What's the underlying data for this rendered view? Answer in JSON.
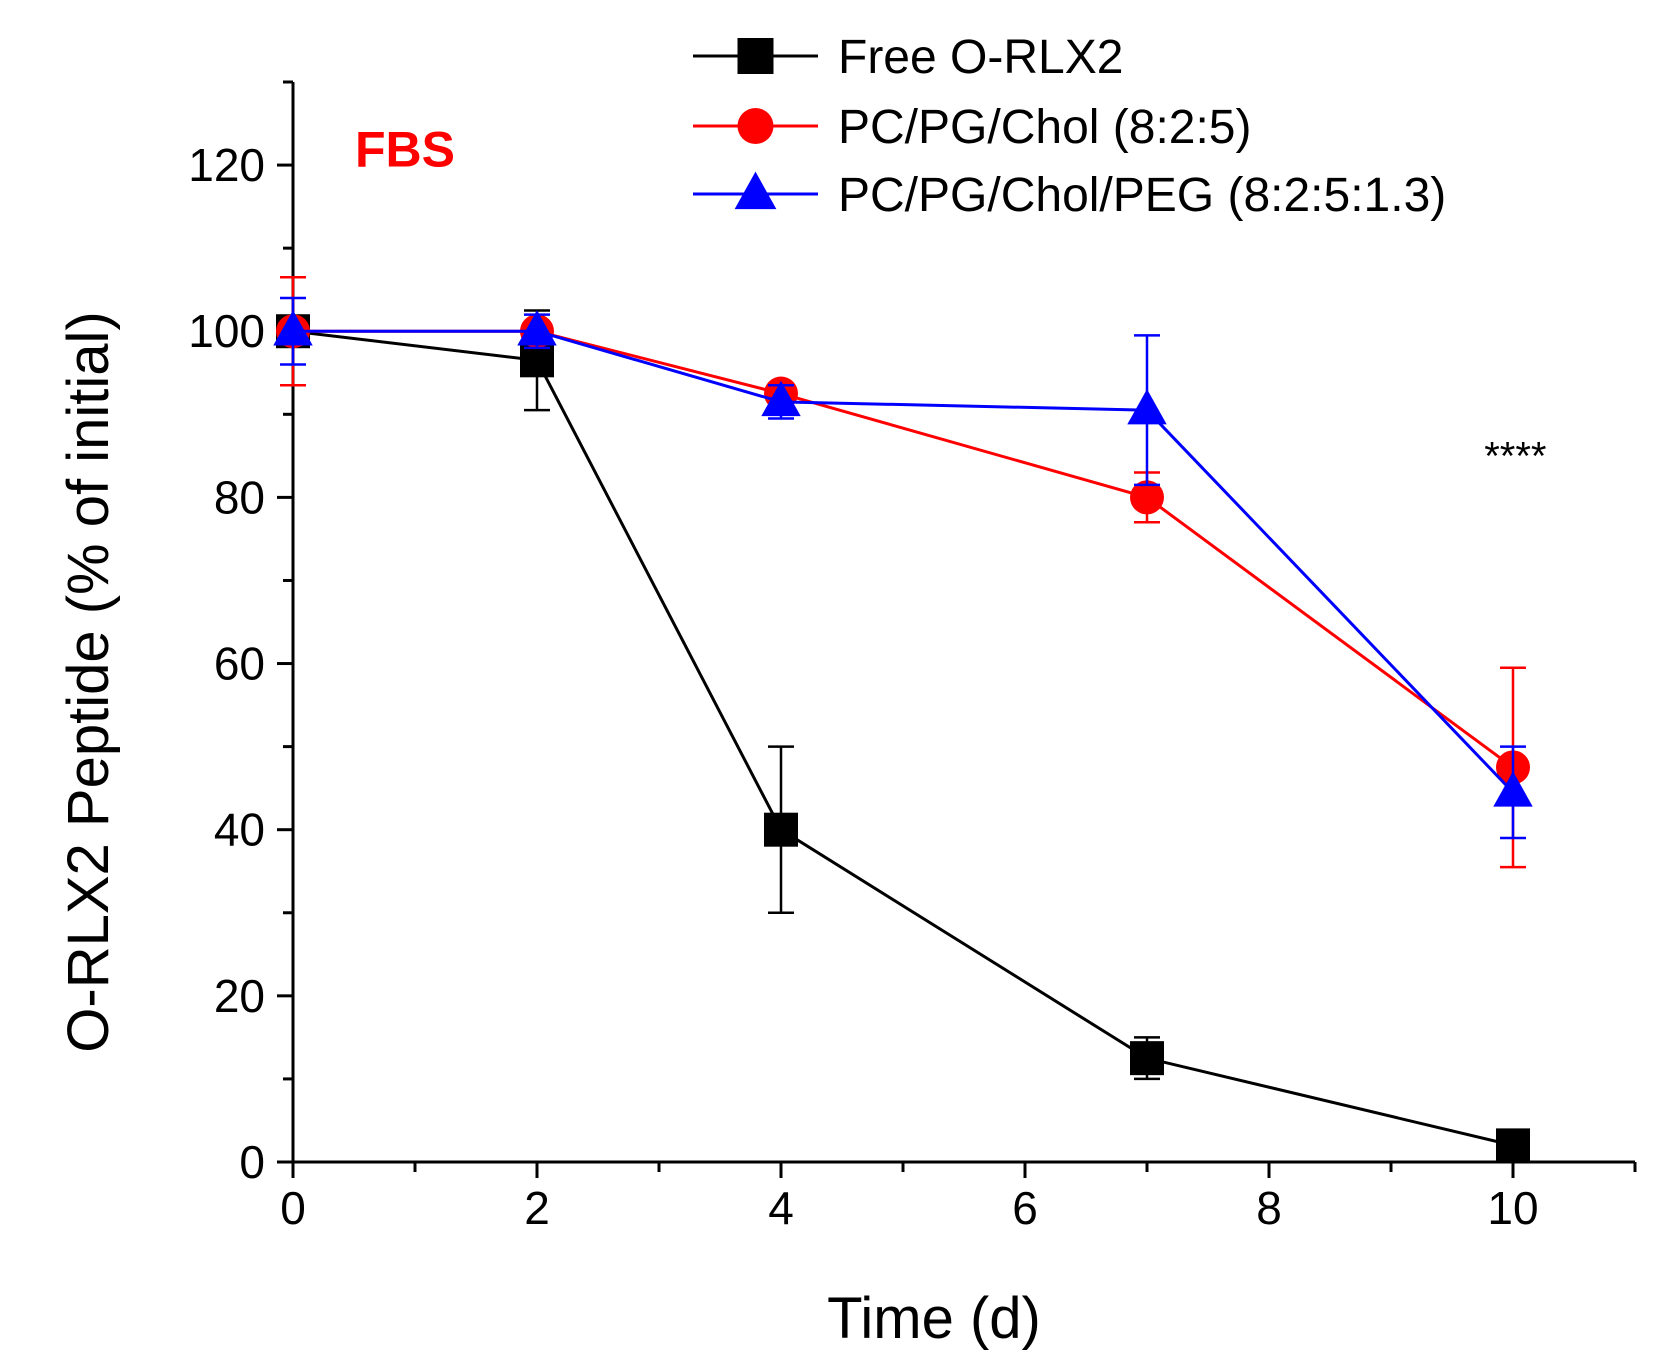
{
  "chart_data": {
    "type": "line",
    "title": "",
    "xlabel": "Time (d)",
    "ylabel": "O-RLX2 Peptide (% of initial)",
    "xlim": [
      0,
      11
    ],
    "ylim": [
      0,
      130
    ],
    "xticks": [
      0,
      2,
      4,
      6,
      8,
      10
    ],
    "yticks": [
      0,
      20,
      40,
      60,
      80,
      100,
      120
    ],
    "grid": false,
    "legend_position": "top-right",
    "annotations": [
      {
        "text": "FBS",
        "color": "#ff0000",
        "x": 1.0,
        "y": 122
      },
      {
        "text": "****",
        "color": "#000000",
        "x": 9.6,
        "y": 86
      }
    ],
    "series": [
      {
        "name": "Free O-RLX2",
        "color": "#000000",
        "marker": "square",
        "x": [
          0,
          2,
          4,
          7,
          10
        ],
        "y": [
          100,
          96.5,
          40,
          12.5,
          2
        ],
        "err": [
          0,
          6,
          10,
          2.5,
          0
        ]
      },
      {
        "name": "PC/PG/Chol (8:2:5)",
        "color": "#ff0000",
        "marker": "circle",
        "x": [
          0,
          2,
          4,
          7,
          10
        ],
        "y": [
          100,
          100,
          92.5,
          80,
          47.5
        ],
        "err": [
          6.5,
          0,
          0,
          3,
          12
        ]
      },
      {
        "name": "PC/PG/Chol/PEG (8:2:5:1.3)",
        "color": "#0000ff",
        "marker": "triangle",
        "x": [
          0,
          2,
          4,
          7,
          10
        ],
        "y": [
          100,
          100,
          91.5,
          90.5,
          44.5
        ],
        "err": [
          4,
          2,
          2,
          9,
          5.5
        ]
      }
    ]
  }
}
